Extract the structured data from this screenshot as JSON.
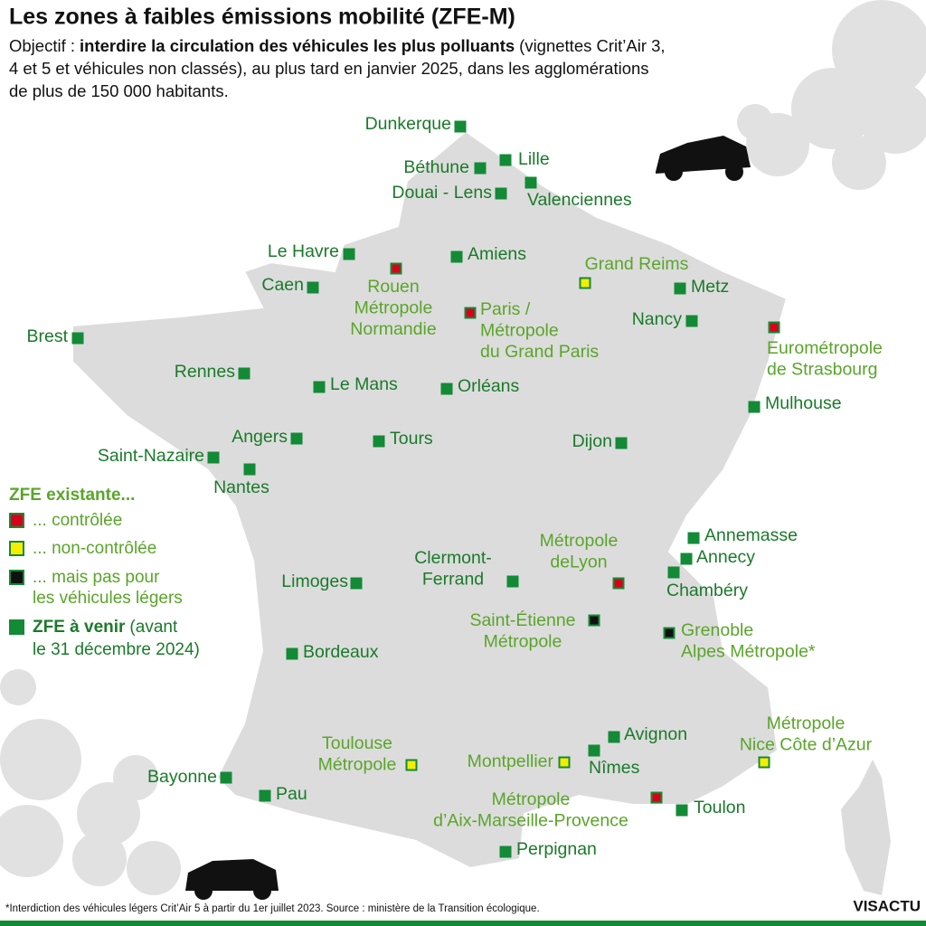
{
  "title": "Les zones à faibles émissions mobilité (ZFE-M)",
  "subtitle": {
    "label": "Objectif :",
    "emphasis": "interdire la circulation des véhicules les plus polluants",
    "lines": [
      "(vignettes Crit’Air 3,",
      "4 et 5 et véhicules non classés), au plus tard en janvier 2025, dans les agglomérations",
      "de plus de 150 000 habitants."
    ]
  },
  "legend": {
    "title": "ZFE existante...",
    "items": [
      {
        "lines": [
          "... contrôlée"
        ],
        "color": "#d9001b",
        "text_color": "#5aa52a"
      },
      {
        "lines": [
          "... non-contrôlée"
        ],
        "color": "#f5ee00",
        "text_color": "#5aa52a"
      },
      {
        "lines": [
          "... mais pas pour",
          "les véhicules légers"
        ],
        "color": "#111111",
        "text_color": "#5aa52a"
      },
      {
        "bold": "ZFE à venir",
        "lines": [
          "(avant",
          "le 31 décembre 2024)"
        ],
        "color": "#138a36",
        "text_color": "#1a7a2a"
      }
    ]
  },
  "cities": [
    {
      "label": [
        "Dunkerque"
      ],
      "color": "#138a36",
      "text_color": "#1a7a2a"
    },
    {
      "label": [
        "Lille"
      ],
      "color": "#138a36",
      "text_color": "#1a7a2a"
    },
    {
      "label": [
        "Béthune"
      ],
      "color": "#138a36",
      "text_color": "#1a7a2a"
    },
    {
      "label": [
        "Douai - Lens"
      ],
      "color": "#138a36",
      "text_color": "#1a7a2a"
    },
    {
      "label": [
        "Valenciennes"
      ],
      "color": "#138a36",
      "text_color": "#1a7a2a"
    },
    {
      "label": [
        "Le Havre"
      ],
      "color": "#138a36",
      "text_color": "#1a7a2a"
    },
    {
      "label": [
        "Amiens"
      ],
      "color": "#138a36",
      "text_color": "#1a7a2a"
    },
    {
      "label": [
        "Rouen",
        "Métropole",
        "Normandie"
      ],
      "color": "#d9001b",
      "text_color": "#5aa52a"
    },
    {
      "label": [
        "Grand Reims"
      ],
      "color": "#f5ee00",
      "text_color": "#5aa52a"
    },
    {
      "label": [
        "Caen"
      ],
      "color": "#138a36",
      "text_color": "#1a7a2a"
    },
    {
      "label": [
        "Metz"
      ],
      "color": "#138a36",
      "text_color": "#1a7a2a"
    },
    {
      "label": [
        "Paris /",
        "Métropole",
        "du Grand Paris"
      ],
      "color": "#d9001b",
      "text_color": "#5aa52a"
    },
    {
      "label": [
        "Nancy"
      ],
      "color": "#138a36",
      "text_color": "#1a7a2a"
    },
    {
      "label": [
        "Eurométropole",
        "de Strasbourg"
      ],
      "color": "#d9001b",
      "text_color": "#5aa52a"
    },
    {
      "label": [
        "Brest"
      ],
      "color": "#138a36",
      "text_color": "#1a7a2a"
    },
    {
      "label": [
        "Rennes"
      ],
      "color": "#138a36",
      "text_color": "#1a7a2a"
    },
    {
      "label": [
        "Le Mans"
      ],
      "color": "#138a36",
      "text_color": "#1a7a2a"
    },
    {
      "label": [
        "Orléans"
      ],
      "color": "#138a36",
      "text_color": "#1a7a2a"
    },
    {
      "label": [
        "Mulhouse"
      ],
      "color": "#138a36",
      "text_color": "#1a7a2a"
    },
    {
      "label": [
        "Angers"
      ],
      "color": "#138a36",
      "text_color": "#1a7a2a"
    },
    {
      "label": [
        "Tours"
      ],
      "color": "#138a36",
      "text_color": "#1a7a2a"
    },
    {
      "label": [
        "Dijon"
      ],
      "color": "#138a36",
      "text_color": "#1a7a2a"
    },
    {
      "label": [
        "Saint-Nazaire"
      ],
      "color": "#138a36",
      "text_color": "#1a7a2a"
    },
    {
      "label": [
        "Nantes"
      ],
      "color": "#138a36",
      "text_color": "#1a7a2a"
    },
    {
      "label": [
        "Annemasse"
      ],
      "color": "#138a36",
      "text_color": "#1a7a2a"
    },
    {
      "label": [
        "Annecy"
      ],
      "color": "#138a36",
      "text_color": "#1a7a2a"
    },
    {
      "label": [
        "Chambéry"
      ],
      "color": "#138a36",
      "text_color": "#1a7a2a"
    },
    {
      "label": [
        "Clermont-",
        "Ferrand"
      ],
      "color": "#138a36",
      "text_color": "#1a7a2a"
    },
    {
      "label": [
        "Limoges"
      ],
      "color": "#138a36",
      "text_color": "#1a7a2a"
    },
    {
      "label": [
        "Métropole",
        "deLyon"
      ],
      "color": "#d9001b",
      "text_color": "#5aa52a"
    },
    {
      "label": [
        "Saint-Étienne",
        "Métropole"
      ],
      "color": "#111111",
      "text_color": "#5aa52a"
    },
    {
      "label": [
        "Grenoble",
        "Alpes Métropole*"
      ],
      "color": "#111111",
      "text_color": "#5aa52a"
    },
    {
      "label": [
        "Bordeaux"
      ],
      "color": "#138a36",
      "text_color": "#1a7a2a"
    },
    {
      "label": [
        "Avignon"
      ],
      "color": "#138a36",
      "text_color": "#1a7a2a"
    },
    {
      "label": [
        "Métropole",
        "Nice Côte d’Azur"
      ],
      "color": "#f5ee00",
      "text_color": "#5aa52a"
    },
    {
      "label": [
        "Toulouse",
        "Métropole"
      ],
      "color": "#f5ee00",
      "text_color": "#5aa52a"
    },
    {
      "label": [
        "Montpellier"
      ],
      "color": "#f5ee00",
      "text_color": "#5aa52a"
    },
    {
      "label": [
        "Nîmes"
      ],
      "color": "#138a36",
      "text_color": "#1a7a2a"
    },
    {
      "label": [
        "Bayonne"
      ],
      "color": "#138a36",
      "text_color": "#1a7a2a"
    },
    {
      "label": [
        "Pau"
      ],
      "color": "#138a36",
      "text_color": "#1a7a2a"
    },
    {
      "label": [
        "Métropole",
        "d’Aix-Marseille-Provence"
      ],
      "color": "#d9001b",
      "text_color": "#5aa52a"
    },
    {
      "label": [
        "Toulon"
      ],
      "color": "#138a36",
      "text_color": "#1a7a2a"
    },
    {
      "label": [
        "Perpignan"
      ],
      "color": "#138a36",
      "text_color": "#1a7a2a"
    }
  ],
  "footnote": "*Interdiction des véhicules légers Crit’Air 5 à partir du 1er juillet 2023.  Source : ministère de la Transition écologique.",
  "logo": "VISACTU"
}
